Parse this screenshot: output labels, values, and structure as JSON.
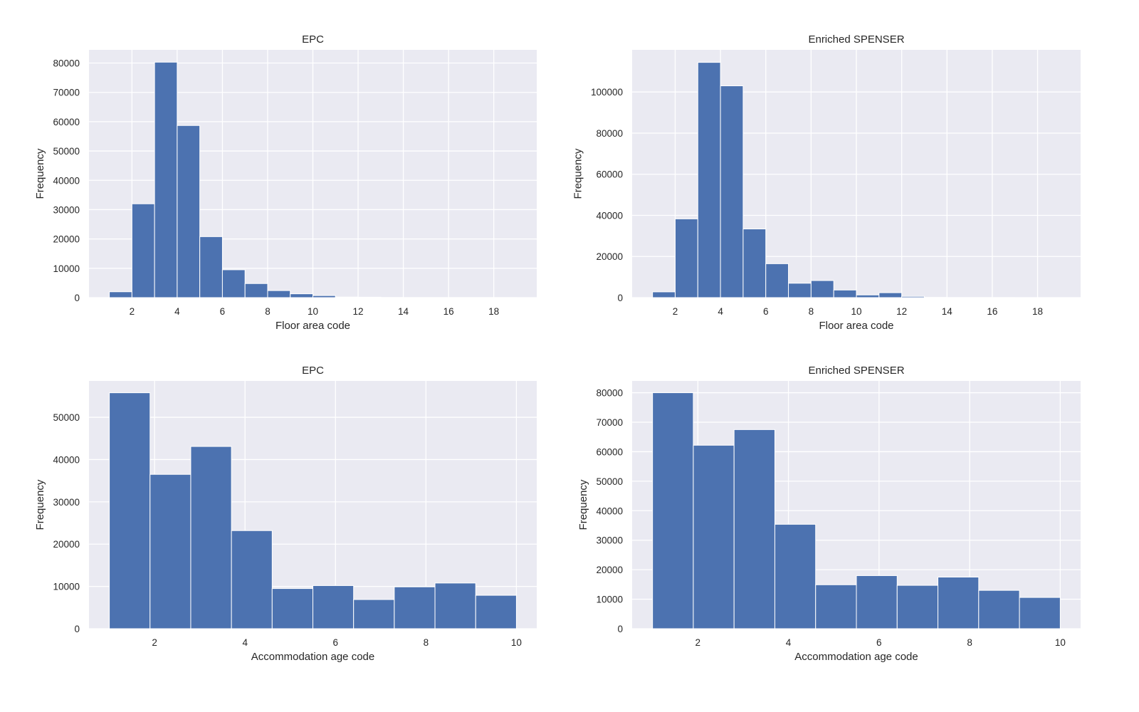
{
  "colors": {
    "bar": "#4c72b0",
    "plot_bg": "#eaeaf2",
    "grid": "#ffffff",
    "text": "#262626"
  },
  "chart_data": [
    {
      "id": "epc-floor",
      "type": "bar",
      "subtype": "histogram",
      "title": "EPC",
      "xlabel": "Floor area code",
      "ylabel": "Frequency",
      "bin_start": 1,
      "bin_width": 1,
      "bar_width": 1,
      "values": [
        2000,
        32000,
        80300,
        58700,
        20800,
        9500,
        4800,
        2400,
        1300,
        700,
        200,
        150,
        50,
        20,
        10,
        10,
        10,
        10
      ],
      "xlim": [
        0.1,
        19.9
      ],
      "ylim": [
        0,
        84500
      ],
      "xticks": [
        2,
        4,
        6,
        8,
        10,
        12,
        14,
        16,
        18
      ],
      "yticks": [
        0,
        10000,
        20000,
        30000,
        40000,
        50000,
        60000,
        70000,
        80000
      ],
      "grid": true
    },
    {
      "id": "spenser-floor",
      "type": "bar",
      "subtype": "histogram",
      "title": "Enriched SPENSER",
      "xlabel": "Floor area code",
      "ylabel": "Frequency",
      "bin_start": 1,
      "bin_width": 1,
      "bar_width": 1,
      "values": [
        2800,
        38300,
        114400,
        103000,
        33400,
        16500,
        7000,
        8300,
        3700,
        1300,
        2400,
        600,
        100,
        50,
        20,
        20,
        10,
        10
      ],
      "xlim": [
        0.1,
        19.9
      ],
      "ylim": [
        0,
        120500
      ],
      "xticks": [
        2,
        4,
        6,
        8,
        10,
        12,
        14,
        16,
        18
      ],
      "yticks": [
        0,
        20000,
        40000,
        60000,
        80000,
        100000
      ],
      "grid": true
    },
    {
      "id": "epc-age",
      "type": "bar",
      "subtype": "histogram",
      "title": "EPC",
      "xlabel": "Accommodation age code",
      "ylabel": "Frequency",
      "bin_start": 1,
      "bin_width": 0.9,
      "bar_width": 0.9,
      "values": [
        55800,
        36500,
        43100,
        23200,
        9500,
        10200,
        6900,
        9900,
        10800,
        7900
      ],
      "xlim": [
        0.55,
        10.45
      ],
      "ylim": [
        0,
        58600
      ],
      "xticks": [
        2,
        4,
        6,
        8,
        10
      ],
      "yticks": [
        0,
        10000,
        20000,
        30000,
        40000,
        50000
      ],
      "grid": true
    },
    {
      "id": "spenser-age",
      "type": "bar",
      "subtype": "histogram",
      "title": "Enriched SPENSER",
      "xlabel": "Accommodation age code",
      "ylabel": "Frequency",
      "bin_start": 1,
      "bin_width": 0.9,
      "bar_width": 0.9,
      "values": [
        80000,
        62200,
        67500,
        35400,
        14900,
        18000,
        14700,
        17500,
        13000,
        10600
      ],
      "xlim": [
        0.55,
        10.45
      ],
      "ylim": [
        0,
        84000
      ],
      "xticks": [
        2,
        4,
        6,
        8,
        10
      ],
      "yticks": [
        0,
        10000,
        20000,
        30000,
        40000,
        50000,
        60000,
        70000,
        80000
      ],
      "grid": true
    }
  ]
}
